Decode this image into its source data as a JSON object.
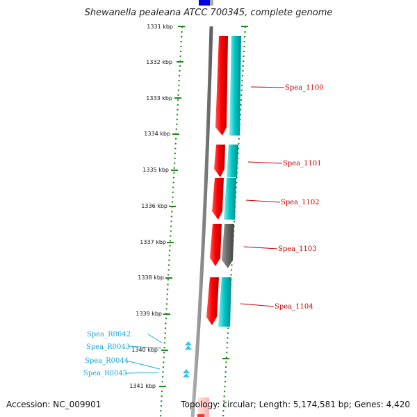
{
  "title": "Shewanella pealeana ATCC 700345, complete genome",
  "accession": "Accession: NC_009901",
  "summary": "Topology: circular; Length: 5,174,581 bp; Genes: 4,420",
  "ticks": [
    "1331 kbp",
    "1332 kbp",
    "1333 kbp",
    "1334 kbp",
    "1335 kbp",
    "1336 kbp",
    "1337 kbp",
    "1338 kbp",
    "1339 kbp",
    "1340 kbp",
    "1341 kbp"
  ],
  "gene_labels": [
    "Spea_1100",
    "Spea_1101",
    "Spea_1102",
    "Spea_1103",
    "Spea_1104"
  ],
  "rna_labels": [
    "Spea_R0042",
    "Spea_R0043",
    "Spea_R0044",
    "Spea_R0045"
  ],
  "colors": {
    "cds": "#ff0000",
    "cog": "#00c8c8",
    "cog_unknown": "#707070",
    "rna": "#3cc0f0",
    "backbone": "#8c8c8c",
    "ruler": "#1a8a1a",
    "label_red": "#cc0000",
    "label_cyan": "#1ea7d6"
  }
}
